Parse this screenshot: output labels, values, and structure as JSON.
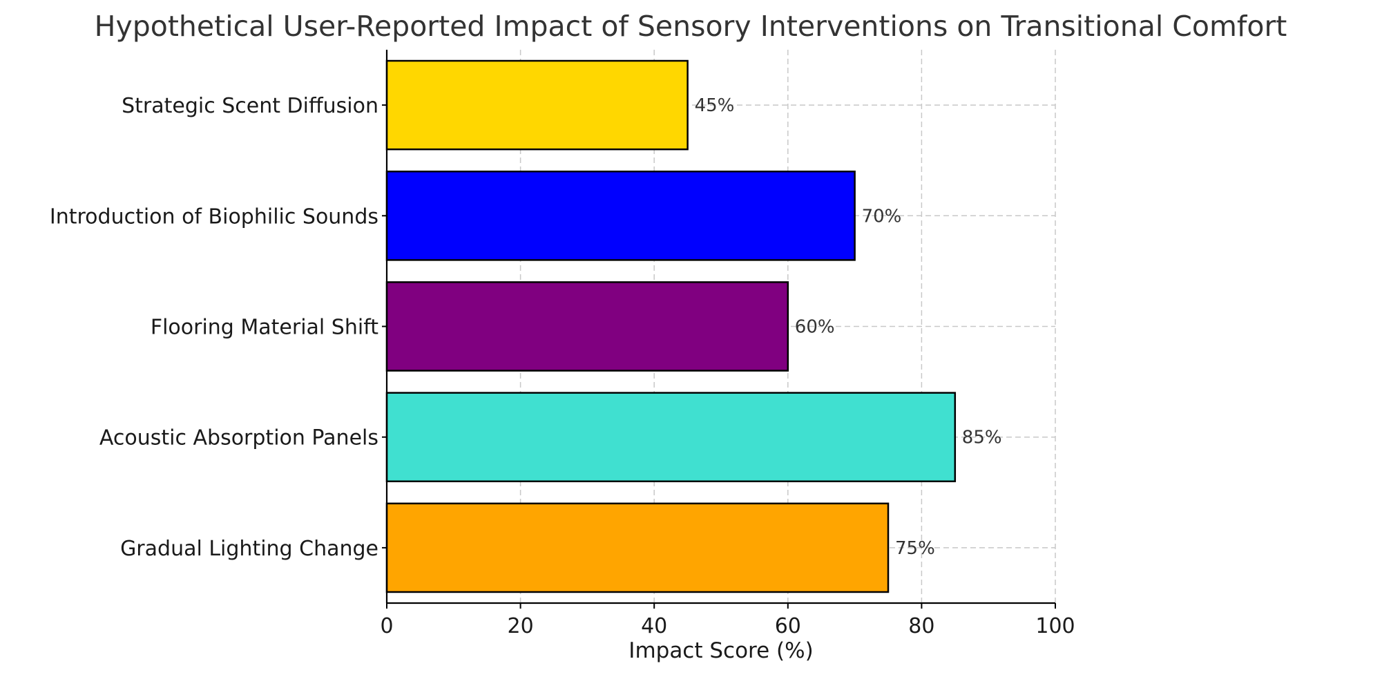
{
  "chart_data": {
    "type": "bar",
    "orientation": "horizontal",
    "title": "Hypothetical User-Reported Impact of Sensory Interventions on Transitional Comfort",
    "xlabel": "Impact Score (%)",
    "ylabel": "",
    "xlim": [
      0,
      100
    ],
    "xticks": [
      0,
      20,
      40,
      60,
      80,
      100
    ],
    "grid": true,
    "categories": [
      "Gradual Lighting Change",
      "Acoustic Absorption Panels",
      "Flooring Material Shift",
      "Introduction of Biophilic Sounds",
      "Strategic Scent Diffusion"
    ],
    "values": [
      75,
      85,
      60,
      70,
      45
    ],
    "value_labels": [
      "75%",
      "85%",
      "60%",
      "70%",
      "45%"
    ],
    "colors": [
      "#FFA500",
      "#40E0D0",
      "#800080",
      "#0000FF",
      "#FFD700"
    ]
  }
}
